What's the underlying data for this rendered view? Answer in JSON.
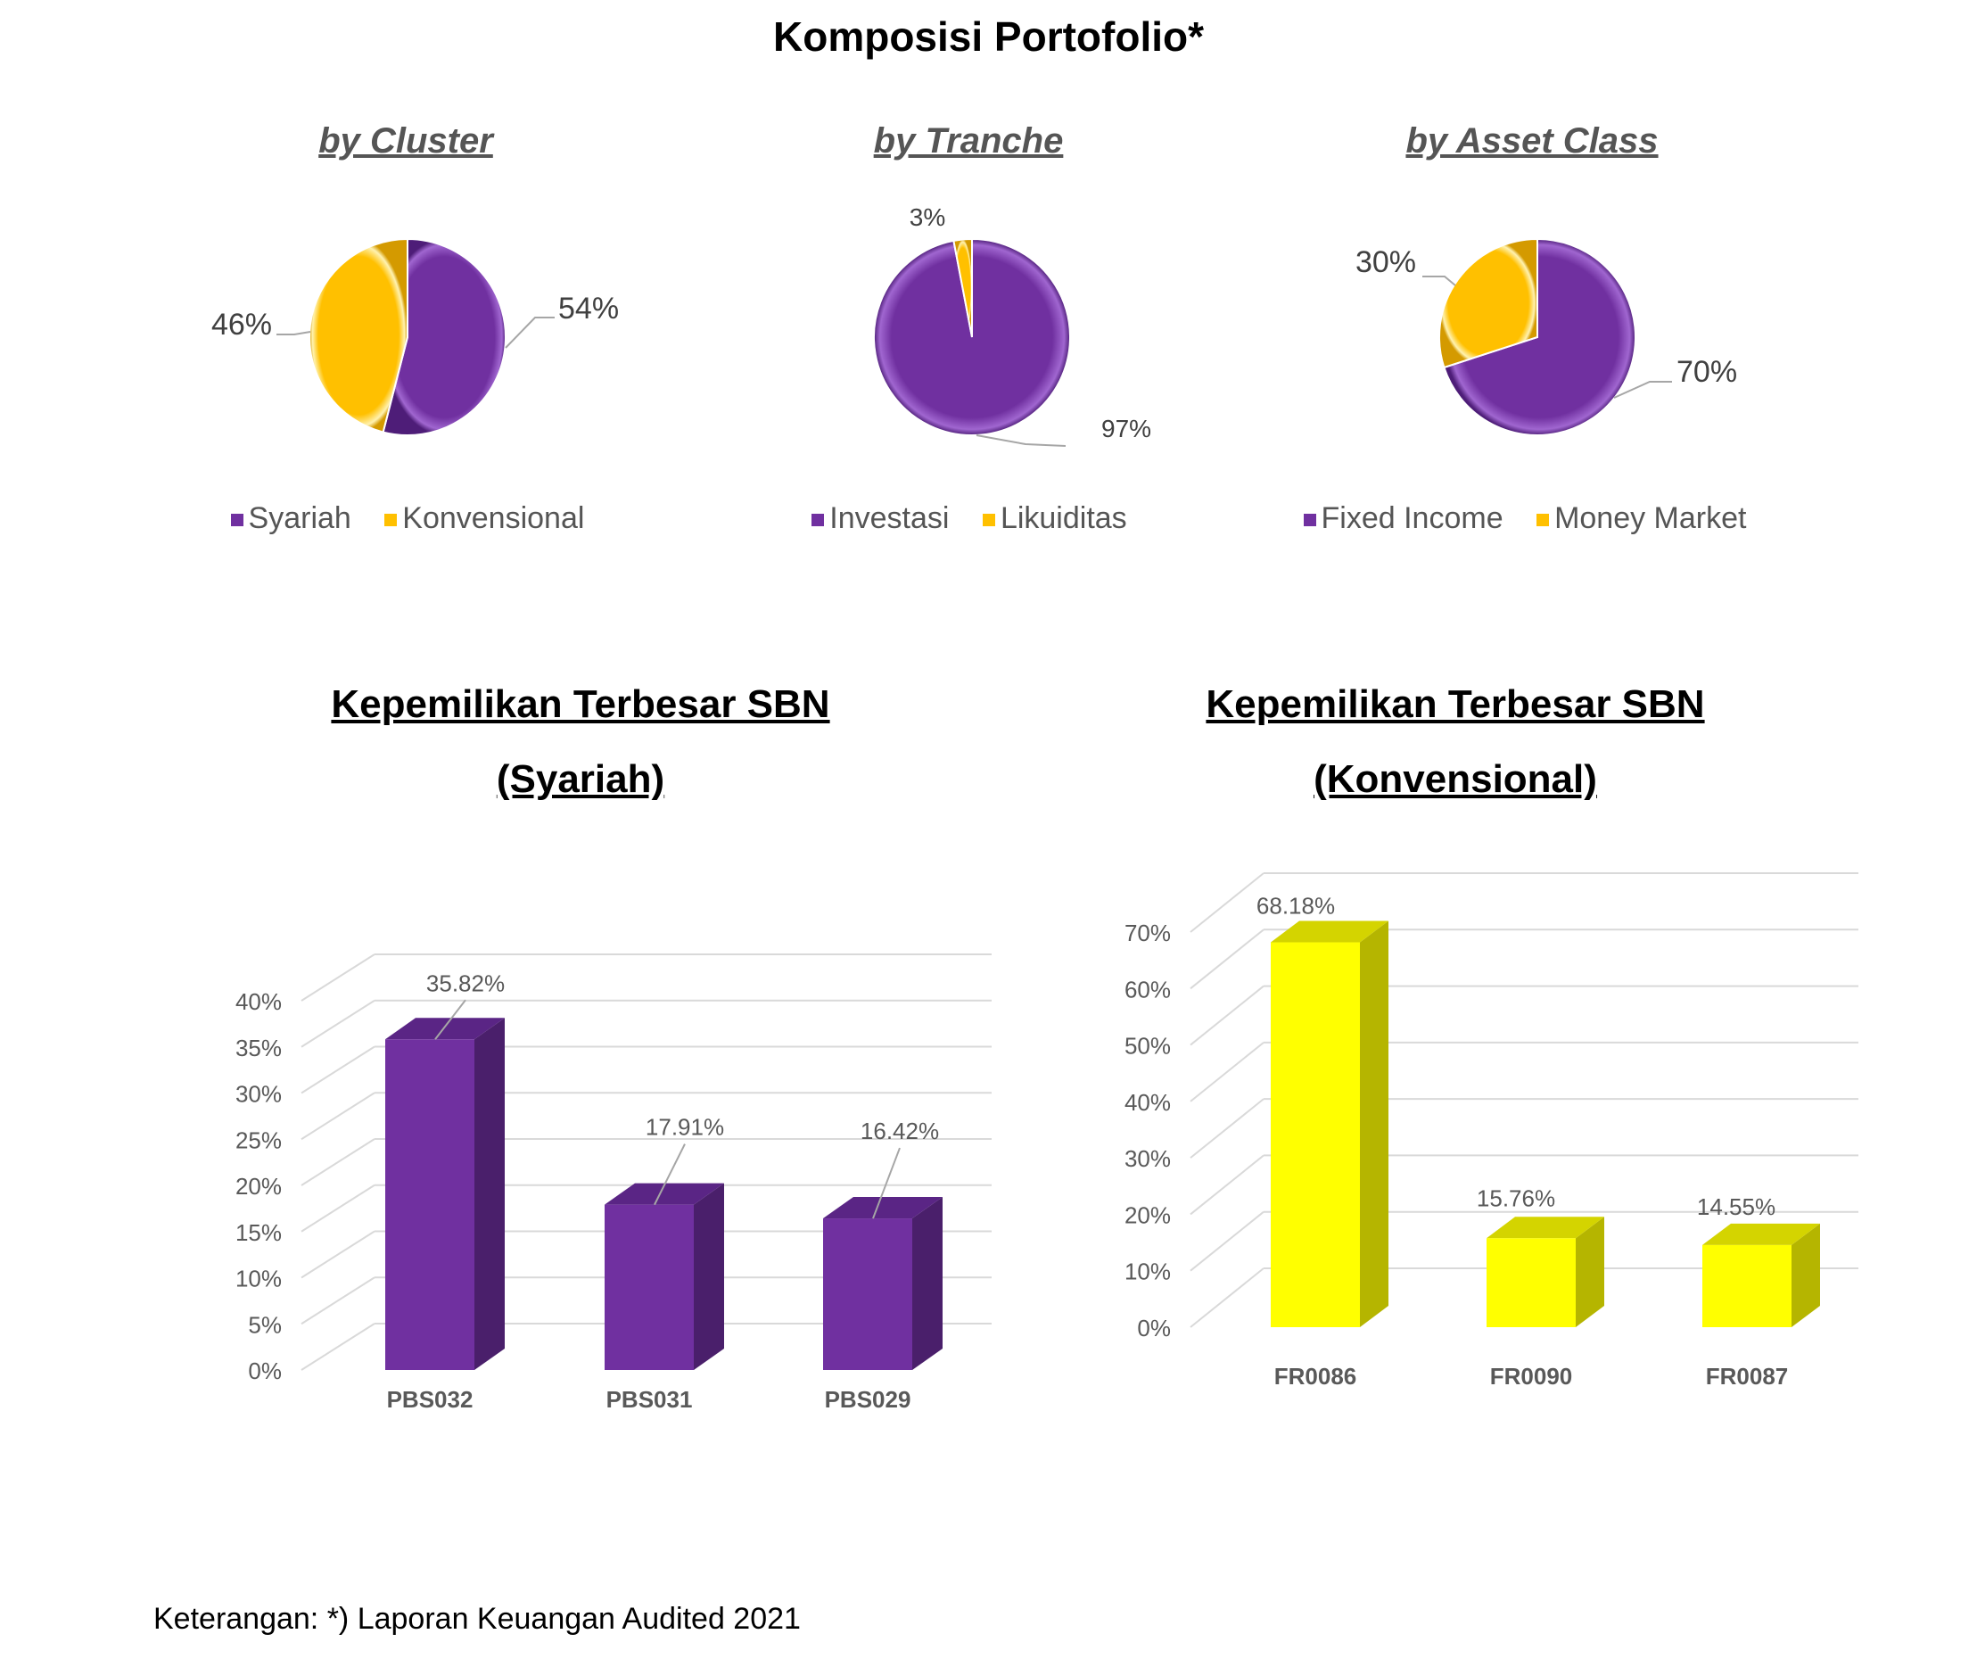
{
  "title": "Komposisi Portofolio*",
  "footnote": "Keterangan: *) Laporan Keuangan Audited 2021",
  "colors": {
    "purple": "#7030a0",
    "purple_dark": "#4a1f6b",
    "gold": "#ffc000",
    "yellow": "#ffff00",
    "yellow_dark": "#b5b500",
    "label_gray": "#595959",
    "grid": "#d9d9d9"
  },
  "chart_data": [
    {
      "type": "pie",
      "title": "by Cluster",
      "slices": [
        {
          "label": "Syariah",
          "value": 54,
          "display": "54%"
        },
        {
          "label": "Konvensional",
          "value": 46,
          "display": "46%"
        }
      ],
      "legend": [
        "Syariah",
        "Konvensional"
      ]
    },
    {
      "type": "pie",
      "title": "by Tranche",
      "slices": [
        {
          "label": "Investasi",
          "value": 97,
          "display": "97%"
        },
        {
          "label": "Likuiditas",
          "value": 3,
          "display": "3%"
        }
      ],
      "legend": [
        "Investasi",
        "Likuiditas"
      ]
    },
    {
      "type": "pie",
      "title": "by Asset Class",
      "slices": [
        {
          "label": "Fixed Income",
          "value": 70,
          "display": "70%"
        },
        {
          "label": "Money Market",
          "value": 30,
          "display": "30%"
        }
      ],
      "legend": [
        "Fixed Income",
        "Money Market"
      ]
    },
    {
      "type": "bar",
      "title_line1": "Kepemilikan Terbesar SBN",
      "title_line2": "(Syariah)",
      "categories": [
        "PBS032",
        "PBS031",
        "PBS029"
      ],
      "values": [
        35.82,
        17.91,
        16.42
      ],
      "value_labels": [
        "35.82%",
        "17.91%",
        "16.42%"
      ],
      "ylim": [
        0,
        40
      ],
      "yticks": [
        "0%",
        "5%",
        "10%",
        "15%",
        "20%",
        "25%",
        "30%",
        "35%",
        "40%"
      ],
      "grid": true
    },
    {
      "type": "bar",
      "title_line1": "Kepemilikan Terbesar SBN",
      "title_line2": "(Konvensional)",
      "categories": [
        "FR0086",
        "FR0090",
        "FR0087"
      ],
      "values": [
        68.18,
        15.76,
        14.55
      ],
      "value_labels": [
        "68.18%",
        "15.76%",
        "14.55%"
      ],
      "ylim": [
        0,
        70
      ],
      "yticks": [
        "0%",
        "10%",
        "20%",
        "30%",
        "40%",
        "50%",
        "60%",
        "70%"
      ],
      "grid": true
    }
  ]
}
